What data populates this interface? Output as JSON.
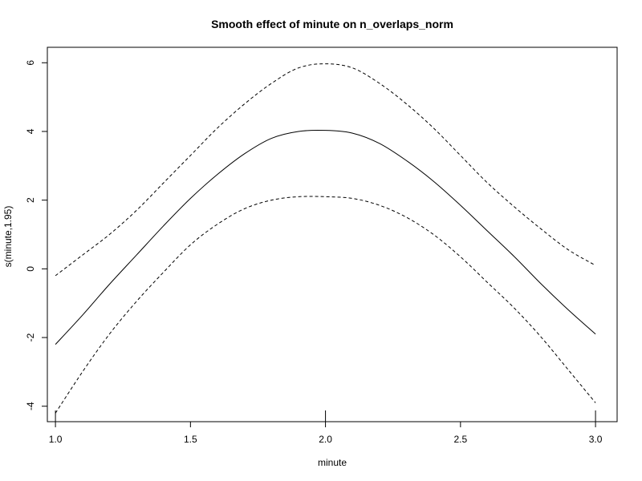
{
  "chart_data": {
    "type": "line",
    "title": "Smooth effect of minute on n_overlaps_norm",
    "xlabel": "minute",
    "ylabel": "s(minute,1.95)",
    "xlim": [
      0.97,
      3.08
    ],
    "ylim": [
      -4.45,
      6.45
    ],
    "x_ticks": [
      "1.0",
      "1.5",
      "2.0",
      "2.5",
      "3.0"
    ],
    "y_ticks": [
      "-4",
      "-2",
      "0",
      "2",
      "4",
      "6"
    ],
    "grid": false,
    "legend": "none",
    "rug_x": [
      1.0,
      2.0,
      3.0
    ],
    "series": [
      {
        "role": "upper",
        "style": "dashed",
        "x": [
          1.0,
          1.1,
          1.2,
          1.3,
          1.4,
          1.5,
          1.6,
          1.7,
          1.8,
          1.9,
          2.0,
          2.1,
          2.2,
          2.3,
          2.4,
          2.5,
          2.6,
          2.7,
          2.8,
          2.9,
          3.0
        ],
        "values": [
          -0.2,
          0.4,
          1.0,
          1.7,
          2.5,
          3.3,
          4.1,
          4.8,
          5.4,
          5.85,
          5.97,
          5.85,
          5.4,
          4.8,
          4.1,
          3.3,
          2.5,
          1.8,
          1.15,
          0.55,
          0.1
        ]
      },
      {
        "role": "fit",
        "style": "solid",
        "x": [
          1.0,
          1.1,
          1.2,
          1.3,
          1.4,
          1.5,
          1.6,
          1.7,
          1.8,
          1.9,
          2.0,
          2.1,
          2.2,
          2.3,
          2.4,
          2.5,
          2.6,
          2.7,
          2.8,
          2.9,
          3.0
        ],
        "values": [
          -2.2,
          -1.35,
          -0.45,
          0.4,
          1.25,
          2.05,
          2.75,
          3.35,
          3.8,
          4.0,
          4.03,
          3.95,
          3.65,
          3.15,
          2.55,
          1.85,
          1.1,
          0.35,
          -0.45,
          -1.2,
          -1.9
        ]
      },
      {
        "role": "lower",
        "style": "dashed",
        "x": [
          1.0,
          1.1,
          1.2,
          1.3,
          1.4,
          1.5,
          1.6,
          1.7,
          1.8,
          1.9,
          2.0,
          2.1,
          2.2,
          2.3,
          2.4,
          2.5,
          2.6,
          2.7,
          2.8,
          2.9,
          3.0
        ],
        "values": [
          -4.2,
          -3.0,
          -1.9,
          -0.95,
          -0.1,
          0.7,
          1.3,
          1.75,
          2.0,
          2.1,
          2.1,
          2.05,
          1.85,
          1.5,
          1.0,
          0.35,
          -0.4,
          -1.15,
          -2.0,
          -2.95,
          -3.9
        ]
      }
    ]
  }
}
